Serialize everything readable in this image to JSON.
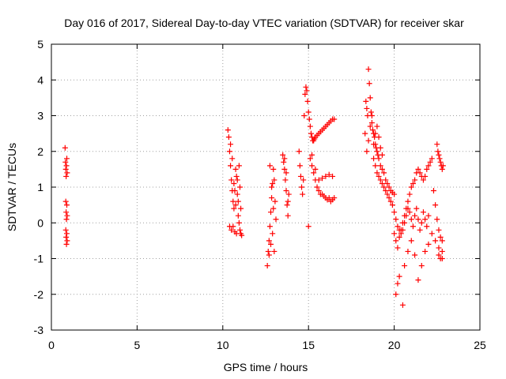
{
  "chart_data": {
    "type": "scatter",
    "title": "Day 016 of 2017, Sidereal Day-to-day VTEC variation (SDTVAR) for receiver skar",
    "xlabel": "GPS time / hours",
    "ylabel": "SDTVAR / TECUs",
    "xlim": [
      0,
      25
    ],
    "ylim": [
      -3,
      5
    ],
    "x_ticks": [
      "0",
      "5",
      "10",
      "15",
      "20",
      "25"
    ],
    "y_ticks": [
      "-3",
      "-2",
      "-1",
      "0",
      "1",
      "2",
      "3",
      "4",
      "5"
    ],
    "grid": true,
    "marker": "+",
    "color": "#ff0000",
    "series": [
      {
        "name": "SDTVAR",
        "x": [
          0.8,
          0.82,
          0.84,
          0.86,
          0.88,
          0.9,
          0.92,
          0.84,
          0.86,
          0.88,
          0.9,
          0.92,
          0.84,
          0.86,
          0.88,
          0.9,
          0.92,
          10.3,
          10.35,
          10.4,
          10.45,
          10.5,
          10.55,
          10.6,
          10.65,
          10.7,
          10.75,
          10.8,
          10.85,
          10.9,
          10.95,
          11.0,
          11.05,
          11.1,
          10.4,
          10.5,
          10.6,
          10.7,
          10.8,
          10.9,
          11.0,
          10.45,
          10.55,
          10.65,
          10.75,
          10.85,
          10.95,
          11.05,
          12.6,
          12.65,
          12.7,
          12.75,
          12.8,
          12.85,
          12.9,
          12.95,
          13.0,
          13.05,
          13.1,
          12.7,
          12.8,
          12.9,
          13.0,
          12.75,
          12.85,
          12.95,
          13.5,
          13.55,
          13.6,
          13.65,
          13.7,
          13.75,
          13.8,
          13.85,
          13.6,
          13.7,
          13.8,
          14.45,
          14.5,
          14.55,
          14.6,
          14.65,
          14.7,
          14.75,
          14.8,
          14.85,
          14.9,
          14.95,
          15.0,
          15.05,
          15.1,
          15.15,
          15.2,
          15.25,
          15.3,
          15.35,
          15.4,
          15.5,
          15.6,
          15.7,
          15.8,
          15.9,
          16.0,
          16.1,
          16.2,
          16.3,
          16.4,
          16.5,
          15.0,
          15.1,
          15.2,
          15.3,
          15.4,
          15.5,
          15.6,
          15.7,
          15.8,
          15.9,
          16.0,
          16.1,
          16.2,
          16.3,
          16.4,
          16.5,
          15.2,
          15.4,
          15.6,
          15.8,
          16.0,
          16.2,
          16.4,
          18.3,
          18.35,
          18.4,
          18.45,
          18.5,
          18.55,
          18.6,
          18.65,
          18.7,
          18.75,
          18.8,
          18.85,
          18.9,
          18.95,
          19.0,
          19.05,
          19.1,
          19.2,
          19.3,
          19.4,
          19.5,
          19.6,
          19.7,
          19.8,
          19.9,
          20.0,
          18.4,
          18.5,
          18.6,
          18.7,
          18.8,
          18.9,
          19.0,
          19.1,
          19.2,
          19.3,
          18.8,
          18.9,
          19.0,
          19.1,
          19.2,
          19.3,
          19.4,
          19.5,
          19.6,
          19.7,
          19.8,
          19.9,
          20.0,
          20.1,
          20.2,
          20.3,
          20.4,
          20.5,
          20.6,
          20.7,
          20.8,
          20.9,
          21.0,
          21.1,
          21.2,
          21.3,
          21.4,
          21.5,
          21.6,
          21.7,
          21.8,
          21.9,
          22.0,
          20.0,
          20.1,
          20.2,
          20.3,
          20.4,
          20.5,
          20.6,
          20.7,
          20.8,
          20.9,
          21.0,
          21.1,
          21.2,
          21.3,
          21.4,
          21.5,
          21.6,
          21.7,
          21.8,
          21.9,
          22.0,
          22.1,
          22.2,
          22.3,
          22.4,
          22.5,
          22.6,
          22.7,
          22.8,
          20.1,
          20.2,
          20.3,
          20.5,
          20.6,
          20.8,
          21.0,
          21.2,
          21.4,
          21.6,
          21.8,
          22.0,
          22.2,
          22.4,
          22.6,
          22.8,
          22.5,
          22.55,
          22.6,
          22.65,
          22.7,
          22.75,
          22.8,
          22.85,
          22.6,
          22.7,
          22.8
        ],
        "y": [
          2.1,
          1.7,
          1.5,
          1.3,
          1.6,
          1.8,
          1.4,
          0.6,
          0.3,
          0.1,
          0.5,
          0.2,
          -0.2,
          -0.4,
          -0.6,
          -0.3,
          -0.5,
          2.6,
          2.4,
          2.0,
          1.6,
          1.2,
          0.9,
          0.6,
          0.4,
          0.9,
          1.5,
          1.3,
          0.8,
          0.2,
          0.0,
          -0.2,
          -0.3,
          -0.35,
          -0.1,
          -0.2,
          -0.1,
          -0.25,
          -0.3,
          0.6,
          1.0,
          2.2,
          1.8,
          1.1,
          0.5,
          1.2,
          1.6,
          0.4,
          -1.2,
          -0.8,
          -0.5,
          -0.1,
          0.3,
          0.7,
          1.1,
          1.5,
          1.2,
          0.6,
          0.1,
          -0.9,
          -0.6,
          -0.3,
          -0.8,
          1.6,
          1.0,
          0.4,
          1.9,
          1.7,
          1.5,
          1.2,
          0.9,
          0.5,
          0.2,
          0.8,
          1.8,
          1.4,
          0.6,
          2.0,
          1.6,
          1.3,
          1.0,
          0.8,
          1.2,
          3.0,
          3.6,
          3.8,
          3.7,
          3.4,
          3.1,
          2.9,
          2.7,
          2.5,
          2.4,
          2.3,
          2.3,
          2.35,
          2.4,
          2.45,
          2.5,
          2.55,
          2.6,
          2.65,
          2.7,
          2.75,
          2.8,
          2.85,
          2.9,
          2.9,
          -0.1,
          1.8,
          1.6,
          1.4,
          1.2,
          1.0,
          0.9,
          0.8,
          0.8,
          0.75,
          0.7,
          0.65,
          0.7,
          0.6,
          0.65,
          0.7,
          1.9,
          1.5,
          1.2,
          1.25,
          1.3,
          1.35,
          1.3,
          2.5,
          3.4,
          3.2,
          3.0,
          4.3,
          3.9,
          3.5,
          3.1,
          2.8,
          2.6,
          2.5,
          2.4,
          2.2,
          2.1,
          2.0,
          1.9,
          1.8,
          1.6,
          1.5,
          1.4,
          1.2,
          1.1,
          1.0,
          0.9,
          0.85,
          0.8,
          2.0,
          2.3,
          2.7,
          3.0,
          2.2,
          2.5,
          2.7,
          2.4,
          2.1,
          1.9,
          1.8,
          1.6,
          1.4,
          1.3,
          1.2,
          1.1,
          1.0,
          0.9,
          0.8,
          0.7,
          0.6,
          0.5,
          0.3,
          0.1,
          -0.1,
          -0.2,
          -0.3,
          -0.2,
          0.0,
          0.2,
          0.4,
          0.3,
          0.1,
          -0.1,
          0.2,
          0.4,
          0.1,
          -0.2,
          0.0,
          0.3,
          0.1,
          -0.1,
          0.2,
          -0.3,
          -0.5,
          -0.7,
          -0.4,
          -0.2,
          0.0,
          0.2,
          0.4,
          0.6,
          0.8,
          1.0,
          1.1,
          1.2,
          1.4,
          1.5,
          1.4,
          1.3,
          1.2,
          1.3,
          1.5,
          1.6,
          1.7,
          1.8,
          0.9,
          0.5,
          0.1,
          -0.2,
          -0.4,
          -0.5,
          -2.0,
          -1.7,
          -1.5,
          -2.3,
          -1.2,
          -0.8,
          -0.5,
          -0.9,
          -1.6,
          -1.2,
          -0.8,
          -0.6,
          -0.3,
          -0.5,
          -0.7,
          -1.0,
          2.2,
          2.0,
          1.9,
          1.8,
          1.7,
          1.6,
          1.5,
          1.6,
          -0.9,
          -1.0,
          -0.8
        ]
      }
    ]
  }
}
